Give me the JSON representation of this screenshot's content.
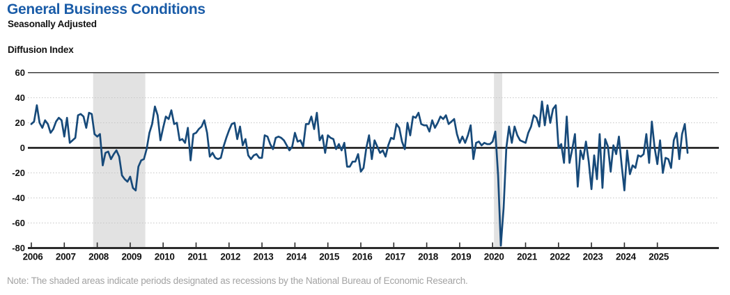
{
  "header": {
    "title": "General Business Conditions",
    "subtitle": "Seasonally Adjusted"
  },
  "note": "Note: The shaded areas indicate periods designated as recessions by the National Bureau of Economic Research.",
  "colors": {
    "title_blue": "#1A5CA8",
    "line_blue": "#174A7A",
    "recession_band": "#E2E2E2",
    "dotted_gridline": "#C6C6C6",
    "solid_line": "#1a1a1a",
    "axis_line": "#2B2B2B",
    "note_gray": "#A3A3A3"
  },
  "chart_data": {
    "type": "line",
    "title": "General Business Conditions",
    "subtitle": "Seasonally Adjusted",
    "ylabel": "Diffusion Index",
    "xlabel": "",
    "frequency": "monthly",
    "start": "2006-01",
    "end": "2025-12",
    "ylim": [
      -80,
      60
    ],
    "y_ticks": [
      60,
      40,
      20,
      0,
      -20,
      -40,
      -60,
      -80
    ],
    "x_tick_years": [
      2006,
      2007,
      2008,
      2009,
      2010,
      2011,
      2012,
      2013,
      2014,
      2015,
      2016,
      2017,
      2018,
      2019,
      2020,
      2021,
      2022,
      2023,
      2024,
      2025
    ],
    "grid": "dotted-horizontal",
    "legend": "none",
    "recessions": [
      {
        "start": "2007-12",
        "end": "2009-06"
      },
      {
        "start": "2020-02",
        "end": "2020-04"
      }
    ],
    "series_name": "General Business Conditions (diffusion index, SA)",
    "values_by_year": {
      "2006": [
        19,
        21,
        34,
        20,
        16,
        22,
        19,
        12,
        15,
        21,
        24,
        22
      ],
      "2007": [
        9,
        24,
        4,
        6,
        8,
        26,
        27,
        25,
        16,
        28,
        27,
        11
      ],
      "2008": [
        9,
        11,
        -14,
        -4,
        -3,
        -9,
        -5,
        -2,
        -7,
        -22,
        -25,
        -27
      ],
      "2009": [
        -23,
        -32,
        -34,
        -15,
        -10,
        -9,
        -1,
        12,
        19,
        33,
        26,
        6
      ],
      "2010": [
        16,
        25,
        23,
        30,
        19,
        20,
        6,
        7,
        4,
        16,
        -10,
        11
      ],
      "2011": [
        12,
        15,
        17,
        22,
        12,
        -7,
        -4,
        -8,
        -9,
        -8,
        1,
        8
      ],
      "2012": [
        14,
        19,
        20,
        7,
        17,
        2,
        7,
        -6,
        -9,
        -6,
        -5,
        -8
      ],
      "2013": [
        -8,
        10,
        9,
        3,
        -1,
        8,
        9,
        8,
        6,
        2,
        -2,
        1
      ],
      "2014": [
        12,
        5,
        6,
        1,
        19,
        19,
        25,
        15,
        28,
        6,
        10,
        -4
      ],
      "2015": [
        10,
        8,
        7,
        -1,
        3,
        -2,
        4,
        -15,
        -15,
        -11,
        -11,
        -5
      ],
      "2016": [
        -19,
        -16,
        0,
        10,
        -9,
        6,
        1,
        -4,
        -2,
        -7,
        2,
        8
      ],
      "2017": [
        7,
        19,
        16,
        5,
        -1,
        20,
        10,
        25,
        24,
        28,
        19,
        18
      ],
      "2018": [
        18,
        13,
        22,
        16,
        20,
        25,
        23,
        26,
        19,
        21,
        23,
        11
      ],
      "2019": [
        4,
        9,
        4,
        10,
        18,
        -9,
        4,
        5,
        2,
        4,
        3,
        3
      ],
      "2020": [
        5,
        13,
        -22,
        -78,
        -48,
        0,
        17,
        4,
        17,
        10,
        6,
        5
      ],
      "2021": [
        4,
        12,
        17,
        26,
        24,
        17,
        37,
        18,
        34,
        20,
        31,
        34
      ],
      "2022": [
        0,
        3,
        -12,
        25,
        -12,
        -1,
        11,
        -31,
        -2,
        -9,
        5,
        -11
      ],
      "2023": [
        -33,
        -6,
        -25,
        11,
        -32,
        7,
        1,
        -19,
        2,
        -5,
        9,
        -14
      ],
      "2024": [
        -34,
        -2,
        -21,
        -14,
        -16,
        -6,
        -7,
        -5,
        11,
        -12,
        21,
        0
      ],
      "2025": [
        -13,
        6,
        -20,
        -8,
        -9,
        -16,
        6,
        12,
        -9,
        11,
        19,
        -4
      ]
    }
  }
}
